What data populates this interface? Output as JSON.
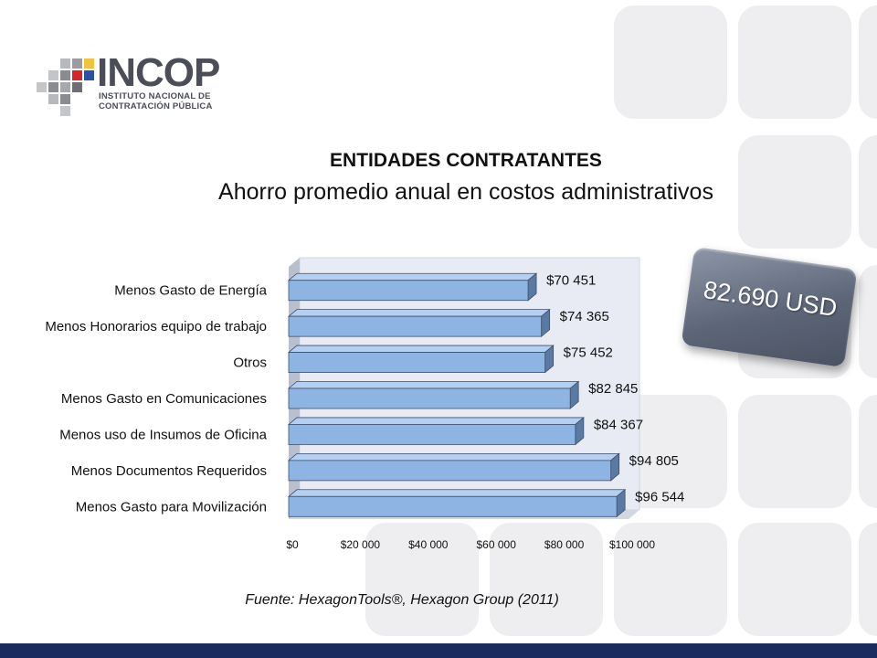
{
  "logo": {
    "word": "INCOP",
    "subtitle_line1": "INSTITUTO NACIONAL DE",
    "subtitle_line2": "CONTRATACIÓN PÚBLICA"
  },
  "header": {
    "title": "ENTIDADES CONTRATANTES",
    "subtitle": "Ahorro promedio anual en costos administrativos"
  },
  "badge": {
    "text": "82.690 USD"
  },
  "source": "Fuente: HexagonTools®, Hexagon Group (2011)",
  "colors": {
    "bar": "#8db4e2",
    "bar_dark": "#5b7aa3",
    "band": "#1a2b5e",
    "badge": "#5d6678"
  },
  "chart_data": {
    "type": "bar",
    "orientation": "horizontal",
    "style": "3d",
    "title": "ENTIDADES CONTRATANTES",
    "subtitle": "Ahorro promedio anual en costos administrativos",
    "categories": [
      "Menos Gasto de Energía",
      "Menos Honorarios equipo de trabajo",
      "Otros",
      "Menos Gasto en Comunicaciones",
      "Menos uso de Insumos de Oficina",
      "Menos Documentos Requeridos",
      "Menos Gasto para Movilización"
    ],
    "values": [
      70451,
      74365,
      75452,
      82845,
      84367,
      94805,
      96544
    ],
    "data_labels": [
      "$70 451",
      "$74 365",
      "$75 452",
      "$82 845",
      "$84 367",
      "$94 805",
      "$96 544"
    ],
    "xlim": [
      0,
      100000
    ],
    "xticks": [
      0,
      20000,
      40000,
      60000,
      80000,
      100000
    ],
    "xtick_labels": [
      "$0",
      "$20 000",
      "$40 000",
      "$60 000",
      "$80 000",
      "$100 000"
    ],
    "grid": false,
    "legend": "none"
  }
}
